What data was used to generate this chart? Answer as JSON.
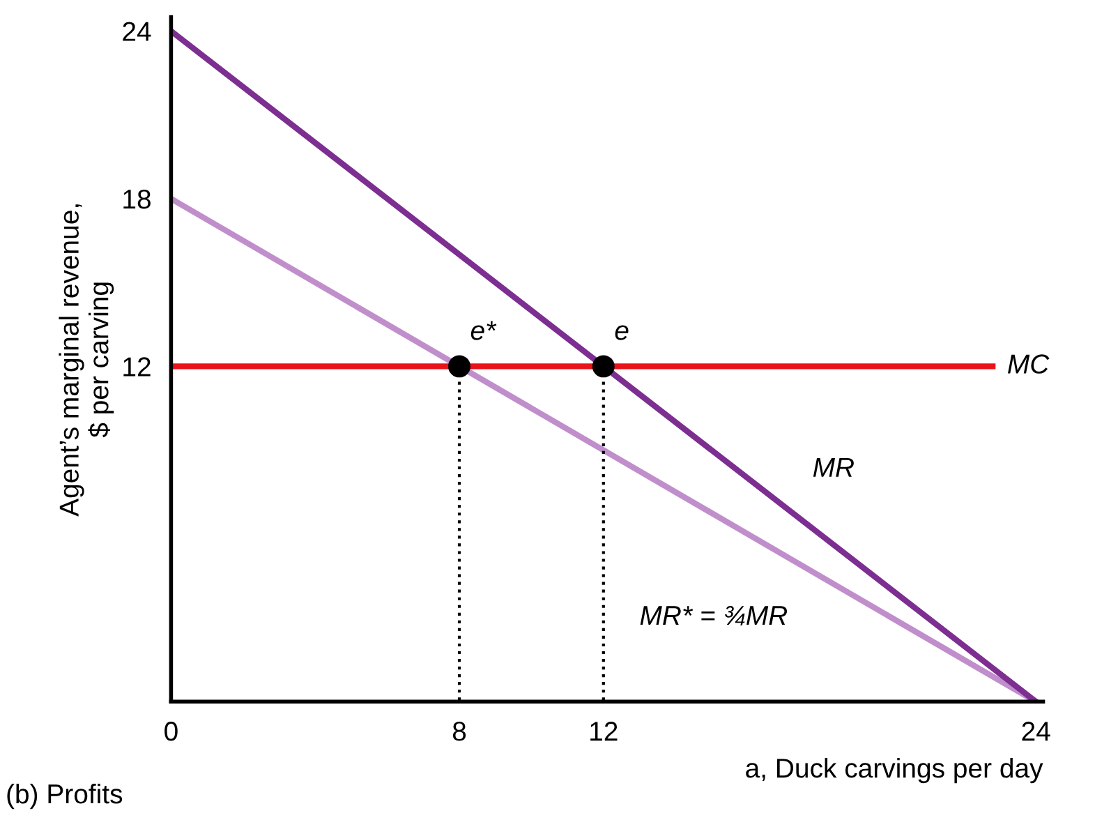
{
  "chart_data": {
    "type": "line",
    "xlabel": "a, Duck carvings per day",
    "ylabel": "Agent’s marginal revenue,\n$ per carving",
    "xlim": [
      0,
      24.2
    ],
    "ylim": [
      0,
      24.5
    ],
    "xticks": [
      0,
      8,
      12,
      24
    ],
    "yticks": [
      12,
      18,
      24
    ],
    "series": [
      {
        "color": "#c18ecc",
        "x": [
          0,
          24
        ],
        "values": [
          18,
          0
        ],
        "line_style": "solid"
      },
      {
        "color": "#7d2e91",
        "x": [
          0,
          24
        ],
        "values": [
          24,
          0
        ],
        "line_style": "solid"
      },
      {
        "color": "#e8141a",
        "x": [
          0,
          22.8
        ],
        "values": [
          12,
          12
        ],
        "line_style": "solid"
      },
      {
        "type": "line",
        "color": "#000000",
        "x": [
          8,
          8
        ],
        "values": [
          12,
          0
        ],
        "line_style": "dotted"
      },
      {
        "type": "line",
        "color": "#000000",
        "x": [
          12,
          12
        ],
        "values": [
          12,
          0
        ],
        "line_style": "dotted"
      },
      {
        "type": "scatter",
        "color": "#000000",
        "x": [
          8,
          12
        ],
        "values": [
          12,
          12
        ],
        "marker": "circle"
      }
    ],
    "annotations": [
      "e*",
      "e",
      "MC",
      "MR",
      "MR* = ¾MR",
      "(b) Profits"
    ]
  }
}
